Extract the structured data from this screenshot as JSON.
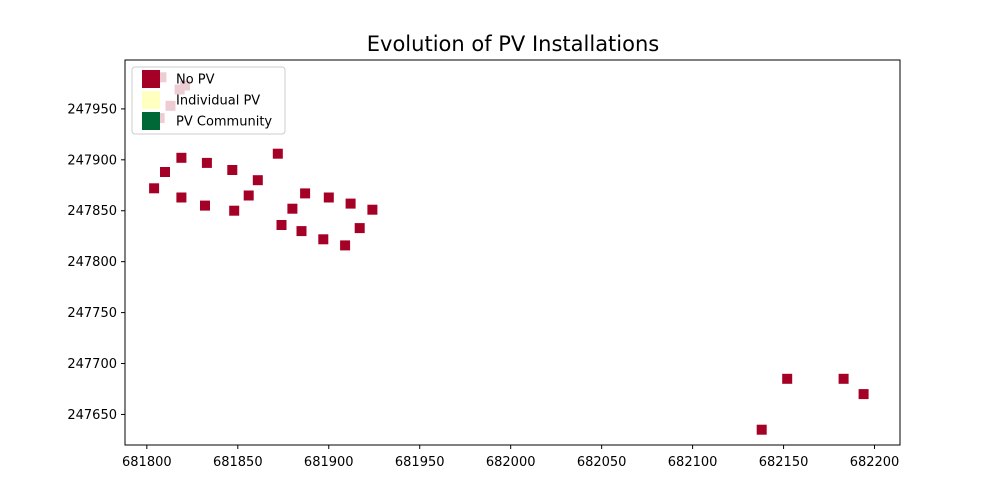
{
  "chart_data": {
    "type": "scatter",
    "title": "Evolution of PV Installations",
    "xlabel": "",
    "ylabel": "",
    "xlim": [
      681788,
      682214
    ],
    "ylim": [
      247620,
      247998
    ],
    "xticks": [
      681800,
      681850,
      681900,
      681950,
      682000,
      682050,
      682100,
      682150,
      682200
    ],
    "yticks": [
      247650,
      247700,
      247750,
      247800,
      247850,
      247900,
      247950
    ],
    "grid": false,
    "marker": "square",
    "legend": {
      "placement": "top-left",
      "entries": [
        {
          "label": "No PV",
          "color": "#a50026"
        },
        {
          "label": "Individual PV",
          "color": "#ffffbf"
        },
        {
          "label": "PV Community",
          "color": "#006837"
        }
      ]
    },
    "series": [
      {
        "name": "No PV",
        "color": "#a50026",
        "points": [
          [
            681808,
            247981
          ],
          [
            681821,
            247973
          ],
          [
            681818,
            247969
          ],
          [
            681813,
            247953
          ],
          [
            681807,
            247941
          ],
          [
            681819,
            247902
          ],
          [
            681810,
            247888
          ],
          [
            681804,
            247872
          ],
          [
            681833,
            247897
          ],
          [
            681847,
            247890
          ],
          [
            681872,
            247906
          ],
          [
            681861,
            247880
          ],
          [
            681819,
            247863
          ],
          [
            681856,
            247865
          ],
          [
            681832,
            247855
          ],
          [
            681848,
            247850
          ],
          [
            681887,
            247867
          ],
          [
            681900,
            247863
          ],
          [
            681880,
            247852
          ],
          [
            681912,
            247857
          ],
          [
            681924,
            247851
          ],
          [
            681874,
            247836
          ],
          [
            681885,
            247830
          ],
          [
            681897,
            247822
          ],
          [
            681917,
            247833
          ],
          [
            681909,
            247816
          ],
          [
            682152,
            247685
          ],
          [
            682183,
            247685
          ],
          [
            682194,
            247670
          ],
          [
            682138,
            247635
          ]
        ]
      }
    ]
  }
}
